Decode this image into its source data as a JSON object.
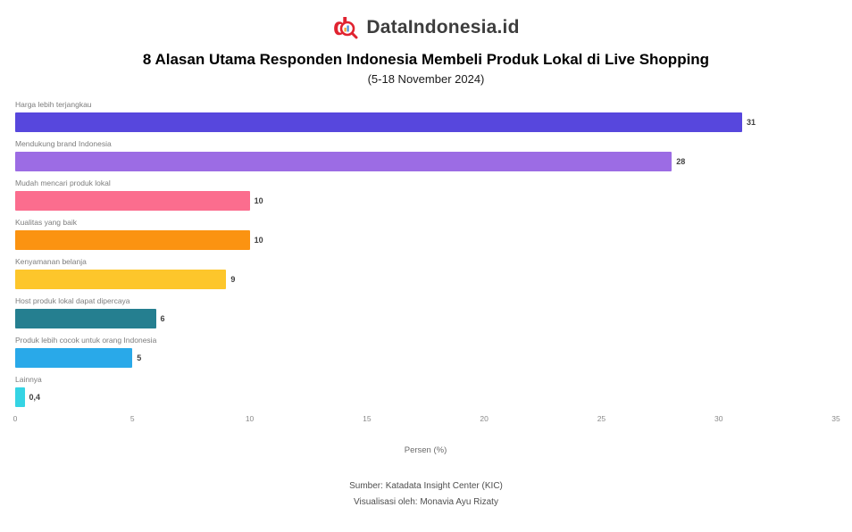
{
  "brand": {
    "name": "DataIndonesia.id"
  },
  "header": {
    "title": "8 Alasan Utama Responden Indonesia Membeli Produk Lokal di Live Shopping",
    "subtitle": "(5-18 November 2024)"
  },
  "chart_data": {
    "type": "bar",
    "orientation": "horizontal",
    "title": "8 Alasan Utama Responden Indonesia Membeli Produk Lokal di Live Shopping",
    "subtitle": "(5-18 November 2024)",
    "categories": [
      "Harga lebih terjangkau",
      "Mendukung brand Indonesia",
      "Mudah mencari produk lokal",
      "Kualitas yang baik",
      "Kenyamanan belanja",
      "Host produk lokal dapat dipercaya",
      "Produk lebih cocok untuk orang Indonesia",
      "Lainnya"
    ],
    "values": [
      31,
      28,
      10,
      10,
      9,
      6,
      5,
      0.4
    ],
    "value_labels": [
      "31",
      "28",
      "10",
      "10",
      "9",
      "6",
      "5",
      "0,4"
    ],
    "bar_colors": [
      "#5747dd",
      "#9c6ce4",
      "#fb6d8e",
      "#fb9311",
      "#fdc62b",
      "#257f90",
      "#29a9e9",
      "#35d4e4"
    ],
    "xlabel": "Persen (%)",
    "xlim": [
      0,
      35
    ],
    "xticks": [
      0,
      5,
      10,
      15,
      20,
      25,
      30,
      35
    ],
    "grid": false,
    "legend": "none"
  },
  "footer": {
    "source": "Sumber: Katadata Insight Center (KIC)",
    "credit": "Visualisasi oleh: Monavia Ayu Rizaty"
  },
  "icons": {
    "logo": "dataindonesia-magnifier-d-logo",
    "logo_red": "#e02330"
  }
}
